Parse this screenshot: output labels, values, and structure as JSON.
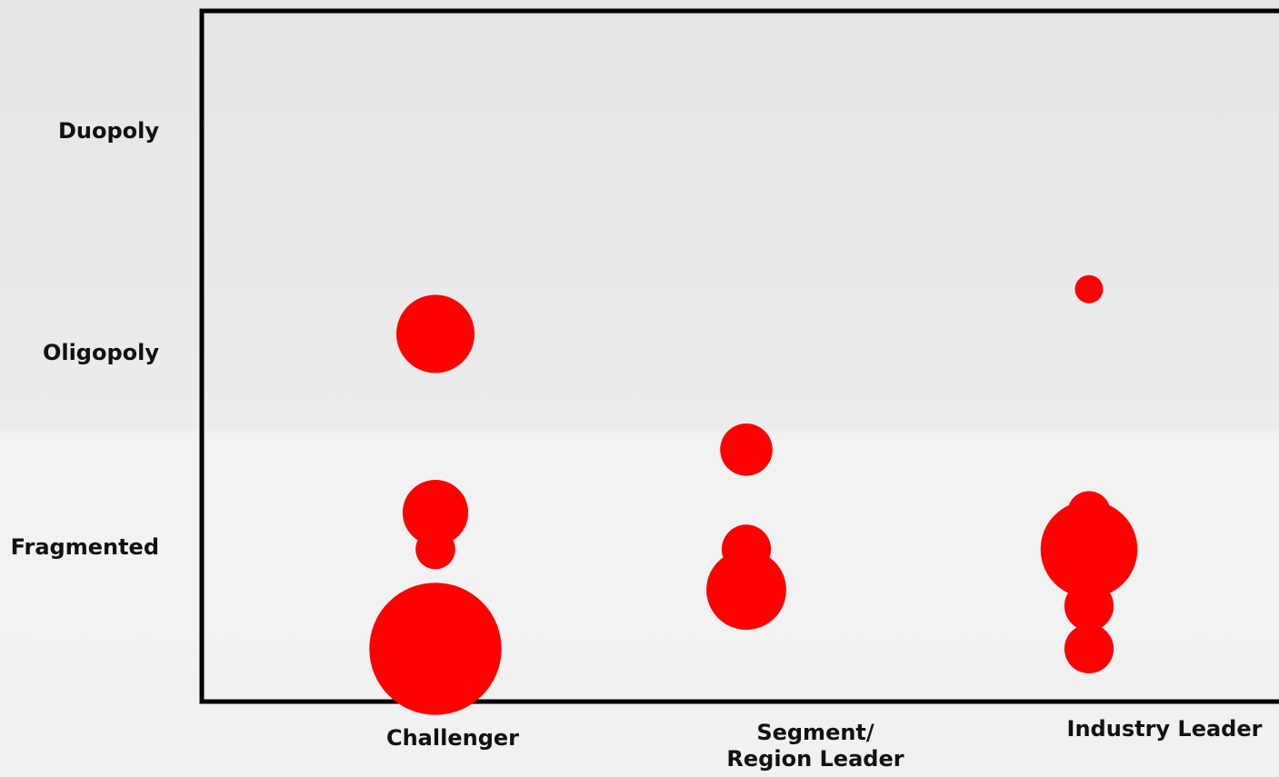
{
  "chart_data": {
    "type": "scatter",
    "title": "",
    "xlabel": "",
    "ylabel": "",
    "x_categories": [
      {
        "lines": [
          "Challenger"
        ]
      },
      {
        "lines": [
          "Segment/",
          "Region Leader"
        ]
      },
      {
        "lines": [
          "Industry Leader"
        ]
      }
    ],
    "y_categories": [
      "Duopoly",
      "Oligopoly",
      "Fragmented"
    ],
    "y_axis_range": [
      0,
      3.4
    ],
    "marker_color": "#ff0000",
    "frame_color": "#000000",
    "bubble_size_units": "relative",
    "points": [
      {
        "x": "Challenger",
        "y": 1.81,
        "size": 1.0
      },
      {
        "x": "Challenger",
        "y": 0.93,
        "size": 0.84
      },
      {
        "x": "Challenger",
        "y": 0.75,
        "size": 0.51
      },
      {
        "x": "Challenger",
        "y": 0.75,
        "size": 0.43
      },
      {
        "x": "Challenger",
        "y": 0.75,
        "size": 0.36
      },
      {
        "x": "Challenger",
        "y": 0.47,
        "size": 0.43
      },
      {
        "x": "Challenger",
        "y": 0.26,
        "size": 1.69
      },
      {
        "x": "Segment/Region Leader",
        "y": 1.24,
        "size": 0.67
      },
      {
        "x": "Segment/Region Leader",
        "y": 0.75,
        "size": 0.63
      },
      {
        "x": "Segment/Region Leader",
        "y": 0.75,
        "size": 0.48
      },
      {
        "x": "Segment/Region Leader",
        "y": 0.55,
        "size": 1.02
      },
      {
        "x": "Industry Leader",
        "y": 2.03,
        "size": 0.36
      },
      {
        "x": "Industry Leader",
        "y": 0.93,
        "size": 0.55
      },
      {
        "x": "Industry Leader",
        "y": 0.75,
        "size": 1.24
      },
      {
        "x": "Industry Leader",
        "y": 0.75,
        "size": 0.43
      },
      {
        "x": "Industry Leader",
        "y": 0.47,
        "size": 0.63
      },
      {
        "x": "Industry Leader",
        "y": 0.26,
        "size": 0.63
      }
    ]
  }
}
